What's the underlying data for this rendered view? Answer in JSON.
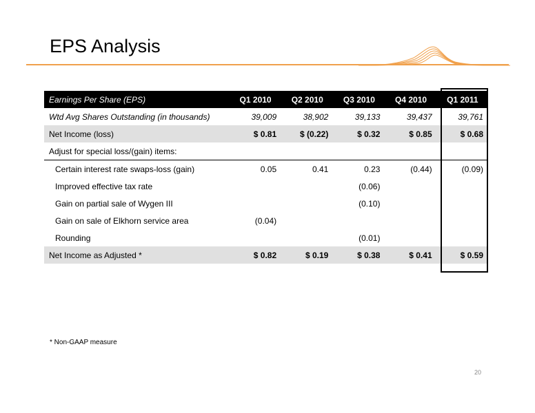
{
  "title": "EPS Analysis",
  "table": {
    "header": [
      "Earnings Per Share (EPS)",
      "Q1 2010",
      "Q2 2010",
      "Q3 2010",
      "Q4 2010",
      "Q1 2011"
    ],
    "rows": [
      {
        "label": "Wtd Avg Shares Outstanding (in thousands)",
        "values": [
          "39,009",
          "38,902",
          "39,133",
          "39,437",
          "39,761"
        ]
      },
      {
        "label": "Net Income (loss)",
        "values": [
          "$ 0.81",
          "$ (0.22)",
          "$ 0.32",
          "$ 0.85",
          "$ 0.68"
        ]
      },
      {
        "label": "Adjust for special loss/(gain) items:",
        "values": [
          "",
          "",
          "",
          "",
          ""
        ]
      },
      {
        "label": "Certain interest rate swaps-loss (gain)",
        "values": [
          "0.05",
          "0.41",
          "0.23",
          "(0.44)",
          "(0.09)"
        ]
      },
      {
        "label": "Improved effective tax rate",
        "values": [
          "",
          "",
          "(0.06)",
          "",
          ""
        ]
      },
      {
        "label": "Gain on partial sale of Wygen III",
        "values": [
          "",
          "",
          "(0.10)",
          "",
          ""
        ]
      },
      {
        "label": "Gain on sale of Elkhorn service area",
        "values": [
          "(0.04)",
          "",
          "",
          "",
          ""
        ]
      },
      {
        "label": "Rounding",
        "values": [
          "",
          "",
          "(0.01)",
          "",
          ""
        ]
      },
      {
        "label": "Net Income as Adjusted *",
        "values": [
          "$ 0.82",
          "$ 0.19",
          "$ 0.38",
          "$ 0.41",
          "$ 0.59"
        ]
      }
    ]
  },
  "footnote": "* Non-GAAP measure",
  "page_number": "20",
  "colors": {
    "accent": "#f0a04b",
    "header_bg": "#000000",
    "row_gray": "#e0e0e0"
  }
}
